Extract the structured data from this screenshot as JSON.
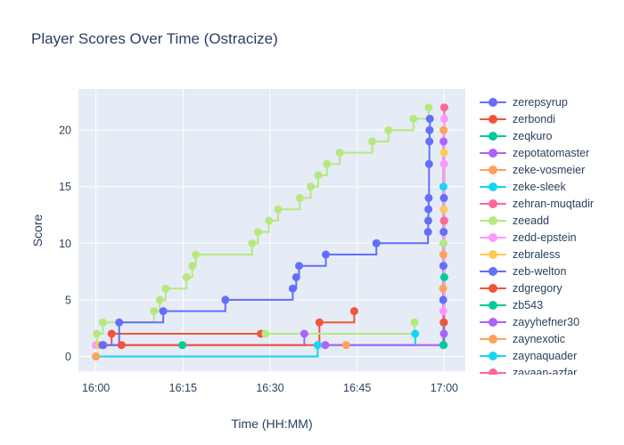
{
  "title": "Player Scores Over Time (Ostracize)",
  "chart_data": {
    "type": "line",
    "step_shape": "hv",
    "markers": true,
    "title": "Player Scores Over Time (Ostracize)",
    "xlabel": "Time (HH:MM)",
    "ylabel": "Score",
    "x_unit": "minutes after 16:00",
    "xlim": [
      -3.01,
      63.63
    ],
    "ylim": [
      -1.34,
      23.63
    ],
    "xticks": [
      {
        "t": 0,
        "label": "16:00"
      },
      {
        "t": 15,
        "label": "16:15"
      },
      {
        "t": 30,
        "label": "16:30"
      },
      {
        "t": 45,
        "label": "16:45"
      },
      {
        "t": 60,
        "label": "17:00"
      }
    ],
    "yticks": [
      {
        "s": 0,
        "label": "0"
      },
      {
        "s": 5,
        "label": "5"
      },
      {
        "s": 10,
        "label": "10"
      },
      {
        "s": 15,
        "label": "15"
      },
      {
        "s": 20,
        "label": "20"
      }
    ],
    "grid": true,
    "legend_position": "right",
    "plot_bg_color": "#E5ECF6",
    "grid_color": "#FFFFFF",
    "text_color": "#2a3f5f",
    "series": [
      {
        "name": "zerepsyrup",
        "color": "#636EFA",
        "in_legend": true,
        "points": [
          [
            1.1,
            1
          ],
          [
            4.0,
            3
          ],
          [
            11.6,
            4
          ],
          [
            22.3,
            5
          ],
          [
            33.9,
            6
          ],
          [
            34.5,
            7
          ],
          [
            35.0,
            8
          ],
          [
            39.6,
            9
          ],
          [
            48.3,
            10
          ],
          [
            57.2,
            11
          ],
          [
            57.24,
            12
          ],
          [
            57.28,
            13
          ],
          [
            57.32,
            14
          ],
          [
            57.38,
            17
          ],
          [
            57.44,
            19
          ],
          [
            57.48,
            20
          ],
          [
            57.52,
            21
          ]
        ]
      },
      {
        "name": "zerbondi",
        "color": "#EF553B",
        "in_legend": true,
        "points": [
          [
            1.15,
            1
          ],
          [
            2.7,
            2
          ],
          [
            28.4,
            2
          ]
        ]
      },
      {
        "name": "zeqkuro",
        "color": "#00CC96",
        "in_legend": true,
        "points": [
          [
            14.9,
            1
          ]
        ]
      },
      {
        "name": "zepotatomaster",
        "color": "#AB63FA",
        "in_legend": true,
        "points": [
          [
            39.5,
            1
          ],
          [
            59.88,
            19
          ]
        ]
      },
      {
        "name": "zeke-vosmeier",
        "color": "#FFA15A",
        "in_legend": true,
        "points": [
          [
            0,
            0
          ]
        ]
      },
      {
        "name": "zeke-sleek",
        "color": "#19D3F3",
        "in_legend": true,
        "points": [
          [
            0,
            0
          ],
          [
            38.2,
            1
          ],
          [
            55,
            2
          ]
        ]
      },
      {
        "name": "zehran-muqtadir",
        "color": "#FF6692",
        "in_legend": true,
        "points": [
          [
            59.92,
            3
          ],
          [
            60,
            12
          ]
        ]
      },
      {
        "name": "zeeadd",
        "color": "#B6E880",
        "in_legend": true,
        "points": [
          [
            0,
            1
          ],
          [
            0.15,
            2
          ],
          [
            1.2,
            3
          ],
          [
            10,
            4
          ],
          [
            11,
            5
          ],
          [
            12,
            6
          ],
          [
            15.6,
            7
          ],
          [
            16.6,
            8
          ],
          [
            17.2,
            9
          ],
          [
            26.9,
            10
          ],
          [
            27.9,
            11
          ],
          [
            29.8,
            12
          ],
          [
            31.4,
            13
          ],
          [
            35.1,
            14
          ],
          [
            37,
            15
          ],
          [
            38.3,
            16
          ],
          [
            39.8,
            17
          ],
          [
            42,
            18
          ],
          [
            47.6,
            19
          ],
          [
            50.4,
            20
          ],
          [
            54.7,
            21
          ],
          [
            57.3,
            22
          ]
        ]
      },
      {
        "name": "zedd-epstein",
        "color": "#FF97FF",
        "in_legend": true,
        "points": [
          [
            0,
            1
          ],
          [
            59.84,
            4
          ],
          [
            59.96,
            17
          ],
          [
            60,
            21
          ]
        ]
      },
      {
        "name": "zebraless",
        "color": "#FECB52",
        "in_legend": true,
        "points": [
          [
            0.55,
            1
          ]
        ]
      },
      {
        "name": "zeb-welton",
        "color": "#636EFA",
        "in_legend": true,
        "points": [
          [
            59.82,
            5
          ],
          [
            59.86,
            8
          ],
          [
            59.9,
            11
          ],
          [
            59.94,
            14
          ]
        ]
      },
      {
        "name": "zdgregory",
        "color": "#EF553B",
        "in_legend": true,
        "points": [
          [
            4.4,
            1
          ],
          [
            38.5,
            3
          ],
          [
            44.5,
            4
          ]
        ]
      },
      {
        "name": "zb543",
        "color": "#00CC96",
        "in_legend": true,
        "points": [
          [
            59.9,
            1
          ],
          [
            60,
            7
          ]
        ]
      },
      {
        "name": "zayyhefner30",
        "color": "#AB63FA",
        "in_legend": true,
        "points": [
          [
            1.3,
            1
          ],
          [
            35.9,
            2
          ]
        ]
      },
      {
        "name": "zaynexotic",
        "color": "#FFA15A",
        "in_legend": true,
        "points": [
          [
            43.1,
            1
          ],
          [
            59.8,
            6
          ],
          [
            59.84,
            9
          ],
          [
            59.88,
            20
          ]
        ]
      },
      {
        "name": "zaynaquader",
        "color": "#19D3F3",
        "in_legend": true,
        "points": [
          [
            59.8,
            1
          ],
          [
            59.86,
            15
          ]
        ]
      },
      {
        "name": "zayaan-azfar",
        "color": "#FF6692",
        "in_legend": true,
        "points": [
          [
            59.95,
            12
          ],
          [
            60,
            22
          ]
        ]
      },
      {
        "name": "",
        "color": "#B6E880",
        "in_legend": false,
        "points": [
          [
            29.2,
            2
          ],
          [
            54.9,
            3
          ]
        ]
      },
      {
        "name": "",
        "color": "#B6E880",
        "in_legend": false,
        "points": [
          [
            59.82,
            3
          ],
          [
            59.86,
            10
          ]
        ]
      },
      {
        "name": "",
        "color": "#EF553B",
        "in_legend": false,
        "points": [
          [
            59.94,
            3
          ]
        ]
      },
      {
        "name": "",
        "color": "#AB63FA",
        "in_legend": false,
        "points": [
          [
            59.94,
            2
          ]
        ]
      },
      {
        "name": "",
        "color": "#FECB52",
        "in_legend": false,
        "points": [
          [
            59.92,
            13
          ],
          [
            59.96,
            18
          ]
        ]
      }
    ],
    "line_draw_order": [
      4,
      2,
      9,
      21,
      19,
      20,
      18,
      10,
      14,
      "8:0-1",
      5,
      1,
      13,
      11,
      12,
      15,
      3,
      6,
      16,
      "8:1-3",
      17,
      7,
      0
    ],
    "marker_draw_order": [
      7,
      10,
      15,
      18,
      14,
      16,
      6,
      8,
      3,
      21,
      19,
      20,
      12,
      2,
      9,
      13,
      5,
      4,
      1,
      11,
      17,
      0
    ]
  }
}
